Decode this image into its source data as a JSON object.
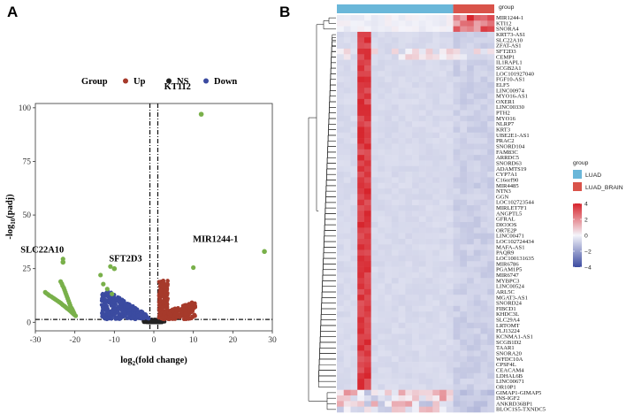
{
  "panels": {
    "a": "A",
    "b": "B"
  },
  "chart_data": [
    {
      "type": "scatter",
      "panel": "A",
      "xlabel": "log2(fold change)",
      "ylabel": "-log10(padj)",
      "xlim": [
        -30,
        30
      ],
      "ylim": [
        -4,
        102
      ],
      "xticks": [
        -30,
        -20,
        -10,
        0,
        10,
        20,
        30
      ],
      "yticks": [
        0,
        25,
        50,
        75,
        100
      ],
      "legend": {
        "title": "Group",
        "placement": "top",
        "items": [
          {
            "label": "Up",
            "color": "#a63a2b"
          },
          {
            "label": "NS",
            "color": "#222222"
          },
          {
            "label": "Down",
            "color": "#3b4ba0"
          }
        ]
      },
      "thresholds": {
        "vlines": [
          -1,
          1
        ],
        "hline": 1.3
      },
      "extra_color": "#79b04a",
      "labeled_points": [
        {
          "label": "KT112",
          "x": 12,
          "y": 97,
          "color": "#79b04a"
        },
        {
          "label": "MIR1244-1",
          "x": 28,
          "y": 33,
          "color": "#79b04a"
        },
        {
          "label": "SLC22A10",
          "x": -23,
          "y": 28,
          "color": "#79b04a"
        },
        {
          "label": "SFT2D3",
          "x": -10,
          "y": 25,
          "color": "#79b04a"
        }
      ],
      "green_points": [
        [
          -23,
          29.5
        ],
        [
          -11,
          26
        ],
        [
          -13.5,
          22
        ],
        [
          10,
          25.5
        ],
        [
          -12.8,
          17.8
        ],
        [
          -11.8,
          15.5
        ],
        [
          -10.6,
          13.2
        ],
        [
          -27.5,
          14
        ],
        [
          -27.2,
          13.5
        ],
        [
          -26.8,
          13
        ],
        [
          -26.5,
          12.5
        ],
        [
          -26,
          12
        ],
        [
          -25.6,
          11.5
        ],
        [
          -25.2,
          11
        ],
        [
          -24.8,
          10.5
        ],
        [
          -24.4,
          10
        ],
        [
          -24,
          9.5
        ],
        [
          -23.6,
          9
        ],
        [
          -23.3,
          8.5
        ],
        [
          -23,
          8
        ],
        [
          -22.6,
          7.5
        ],
        [
          -22.3,
          7
        ],
        [
          -22,
          6.5
        ],
        [
          -21.6,
          6
        ],
        [
          -21.3,
          5.5
        ],
        [
          -21,
          5
        ],
        [
          -20.7,
          4.5
        ],
        [
          -20.4,
          4
        ],
        [
          -20.1,
          3.5
        ],
        [
          -19.8,
          3
        ],
        [
          -23.6,
          19
        ],
        [
          -23.3,
          18
        ],
        [
          -23.1,
          17
        ],
        [
          -22.8,
          16
        ],
        [
          -22.6,
          15
        ],
        [
          -22.4,
          14
        ],
        [
          -22.2,
          13
        ],
        [
          -22,
          12
        ],
        [
          -21.8,
          11
        ],
        [
          -21.6,
          10
        ],
        [
          -21.4,
          9
        ],
        [
          -21.2,
          8
        ],
        [
          -21,
          7
        ],
        [
          -20.8,
          6.5
        ],
        [
          -20.6,
          5.8
        ],
        [
          -20.4,
          5
        ],
        [
          -20.2,
          4.2
        ]
      ],
      "up_color": "#a63a2b",
      "down_color": "#3b4ba0",
      "ns_color": "#222222"
    },
    {
      "type": "heatmap",
      "panel": "B",
      "group_legend": {
        "title": "group",
        "items": [
          {
            "label": "LUAD",
            "color": "#6ab7d9"
          },
          {
            "label": "LUAD_BRAIN",
            "color": "#d9534a"
          }
        ]
      },
      "scale": {
        "min": -4,
        "max": 4,
        "ticks": [
          4,
          2,
          0,
          -2,
          -4
        ],
        "low": "#3c4ba0",
        "mid": "#f4f4fa",
        "high": "#d7242c"
      },
      "n_luad": 17,
      "n_brain": 6,
      "highlight_gene": "NLRP7",
      "genes": [
        "MIR1244-1",
        "KTI12",
        "SNORA4",
        "KRT73-AS1",
        "SLC22A10",
        "ZFAT-AS1",
        "SFT2D3",
        "CEMP1",
        "IL1RAPL1",
        "SCGB2A1",
        "LOC101927040",
        "FGF10-AS1",
        "ELF5",
        "LINC00974",
        "MYO16-AS1",
        "OXER1",
        "LINC00330",
        "PTH2",
        "MYO16",
        "NLRP7",
        "KRT3",
        "UBE2E1-AS1",
        "PRAC2",
        "SNORD104",
        "FAM83C",
        "ARRDC5",
        "SNORD63",
        "ADAMTS19",
        "CYP7A1",
        "C16orf90",
        "MIR4485",
        "NTN3",
        "GGN",
        "LOC102723544",
        "MIRLET7F1",
        "ANGPTL5",
        "GFRAL",
        "DIO3OS",
        "OR7E2P",
        "LINC00471",
        "LOC102724434",
        "MAFA-AS1",
        "PAQR9",
        "LOC100131635",
        "MIR6786",
        "PGAM1P5",
        "MIR6747",
        "MYBPC3",
        "LINC00524",
        "ARL5C",
        "MGAT3-AS1",
        "SNORD24",
        "FIBCD1",
        "KHDC3L",
        "SLC29A4",
        "LRTOMT",
        "FLJ13224",
        "KCNMA1-AS1",
        "SCGB1D2",
        "TAAR1",
        "SNORA20",
        "WFDC10A",
        "CPSF4L",
        "CEACAM4",
        "LDHAL6B",
        "LINC00671",
        "OR10P1",
        "GIMAP1-GIMAP5",
        "INS-IGF2",
        "ANKRD36BP1",
        "BLOC1S5-TXNDC5"
      ]
    }
  ]
}
